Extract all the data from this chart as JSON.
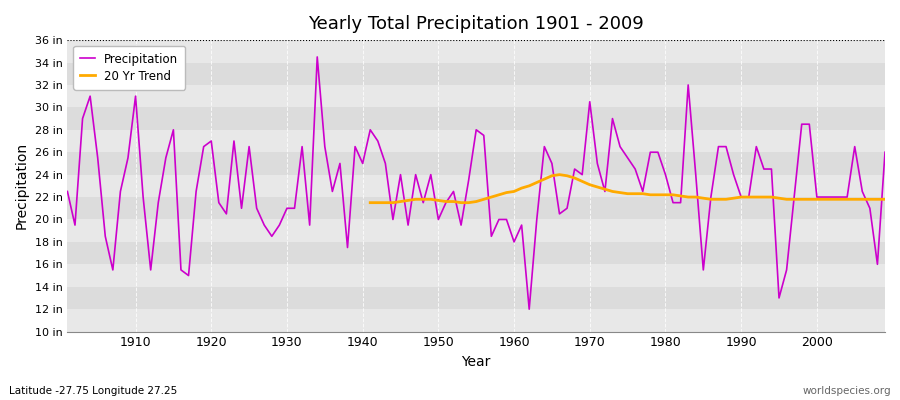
{
  "title": "Yearly Total Precipitation 1901 - 2009",
  "xlabel": "Year",
  "ylabel": "Precipitation",
  "footnote_left": "Latitude -27.75 Longitude 27.25",
  "footnote_right": "worldspecies.org",
  "fig_bg_color": "#ffffff",
  "plot_bg_color": "#dcdcdc",
  "stripe_color": "#e8e8e8",
  "precip_color": "#cc00cc",
  "trend_color": "#ffaa00",
  "ylim": [
    10,
    36
  ],
  "yticks": [
    10,
    12,
    14,
    16,
    18,
    20,
    22,
    24,
    26,
    28,
    30,
    32,
    34,
    36
  ],
  "xlim": [
    1901,
    2009
  ],
  "xticks": [
    1910,
    1920,
    1930,
    1940,
    1950,
    1960,
    1970,
    1980,
    1990,
    2000
  ],
  "years": [
    1901,
    1902,
    1903,
    1904,
    1905,
    1906,
    1907,
    1908,
    1909,
    1910,
    1911,
    1912,
    1913,
    1914,
    1915,
    1916,
    1917,
    1918,
    1919,
    1920,
    1921,
    1922,
    1923,
    1924,
    1925,
    1926,
    1927,
    1928,
    1929,
    1930,
    1931,
    1932,
    1933,
    1934,
    1935,
    1936,
    1937,
    1938,
    1939,
    1940,
    1941,
    1942,
    1943,
    1944,
    1945,
    1946,
    1947,
    1948,
    1949,
    1950,
    1951,
    1952,
    1953,
    1954,
    1955,
    1956,
    1957,
    1958,
    1959,
    1960,
    1961,
    1962,
    1963,
    1964,
    1965,
    1966,
    1967,
    1968,
    1969,
    1970,
    1971,
    1972,
    1973,
    1974,
    1975,
    1976,
    1977,
    1978,
    1979,
    1980,
    1981,
    1982,
    1983,
    1984,
    1985,
    1986,
    1987,
    1988,
    1989,
    1990,
    1991,
    1992,
    1993,
    1994,
    1995,
    1996,
    1997,
    1998,
    1999,
    2000,
    2001,
    2002,
    2003,
    2004,
    2005,
    2006,
    2007,
    2008,
    2009
  ],
  "precip": [
    22.5,
    19.5,
    29.0,
    31.0,
    25.5,
    18.5,
    15.5,
    22.5,
    25.5,
    31.0,
    22.0,
    15.5,
    21.5,
    25.5,
    28.0,
    15.5,
    15.0,
    22.5,
    26.5,
    27.0,
    21.5,
    20.5,
    27.0,
    21.0,
    26.5,
    21.0,
    19.5,
    18.5,
    19.5,
    21.0,
    21.0,
    26.5,
    19.5,
    34.5,
    26.5,
    22.5,
    25.0,
    17.5,
    26.5,
    25.0,
    28.0,
    27.0,
    25.0,
    20.0,
    24.0,
    19.5,
    24.0,
    21.5,
    24.0,
    20.0,
    21.5,
    22.5,
    19.5,
    23.5,
    28.0,
    27.5,
    18.5,
    20.0,
    20.0,
    18.0,
    19.5,
    12.0,
    20.0,
    26.5,
    25.0,
    20.5,
    21.0,
    24.5,
    24.0,
    30.5,
    25.0,
    22.5,
    29.0,
    26.5,
    25.5,
    24.5,
    22.5,
    26.0,
    26.0,
    24.0,
    21.5,
    21.5,
    32.0,
    24.0,
    15.5,
    22.0,
    26.5,
    26.5,
    24.0,
    22.0,
    22.0,
    26.5,
    24.5,
    24.5,
    13.0,
    15.5,
    22.0,
    28.5,
    28.5,
    22.0,
    22.0,
    22.0,
    22.0,
    22.0,
    26.5,
    22.5,
    21.0,
    16.0,
    26.0
  ],
  "trend_start_year": 1941,
  "trend": [
    21.5,
    21.5,
    21.5,
    21.5,
    21.6,
    21.7,
    21.8,
    21.8,
    21.8,
    21.7,
    21.6,
    21.6,
    21.5,
    21.5,
    21.6,
    21.8,
    22.0,
    22.2,
    22.4,
    22.5,
    22.8,
    23.0,
    23.3,
    23.6,
    23.9,
    24.0,
    23.9,
    23.7,
    23.4,
    23.1,
    22.9,
    22.7,
    22.5,
    22.4,
    22.3,
    22.3,
    22.3,
    22.2,
    22.2,
    22.2,
    22.2,
    22.1,
    22.0,
    22.0,
    21.9,
    21.8,
    21.8,
    21.8,
    21.9,
    22.0,
    22.0,
    22.0,
    22.0,
    22.0,
    21.9,
    21.8,
    21.8,
    21.8,
    21.8,
    21.8,
    21.8,
    21.8,
    21.8,
    21.8,
    21.8,
    21.8,
    21.8,
    21.8,
    21.8
  ]
}
